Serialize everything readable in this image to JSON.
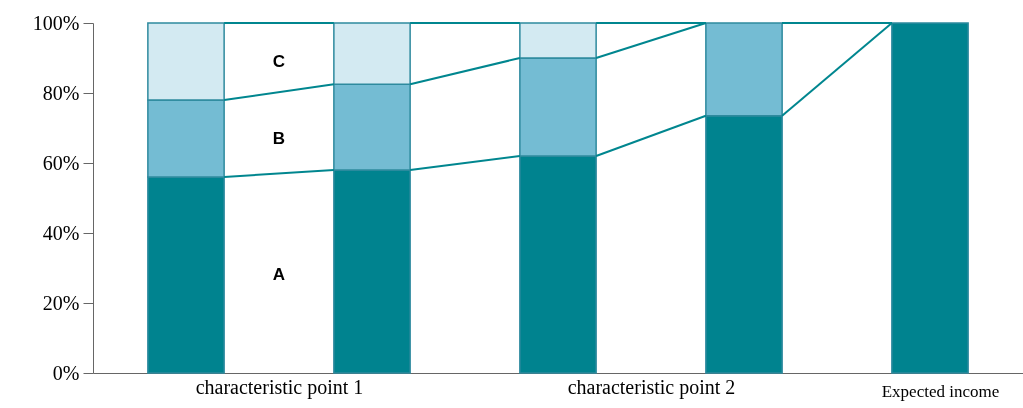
{
  "chart_data": {
    "type": "bar",
    "stacked": true,
    "categories": [
      "characteristic point 1",
      null,
      "characteristic point 2",
      null,
      "Expected income"
    ],
    "series": [
      {
        "name": "A",
        "color": "#00838f",
        "values": [
          56,
          58,
          62,
          73.5,
          100
        ]
      },
      {
        "name": "B",
        "color": "#74bcd3",
        "values": [
          22,
          24.5,
          28,
          26.5,
          0
        ]
      },
      {
        "name": "C",
        "color": "#d3eaf2",
        "values": [
          22,
          17.5,
          10,
          0,
          0
        ]
      }
    ],
    "ylim": [
      0,
      100
    ],
    "yticks": [
      {
        "value": 0,
        "label": "0%"
      },
      {
        "value": 20,
        "label": "20%"
      },
      {
        "value": 40,
        "label": "40%"
      },
      {
        "value": 60,
        "label": "60%"
      },
      {
        "value": 80,
        "label": "80%"
      },
      {
        "value": 100,
        "label": "100%"
      }
    ]
  }
}
